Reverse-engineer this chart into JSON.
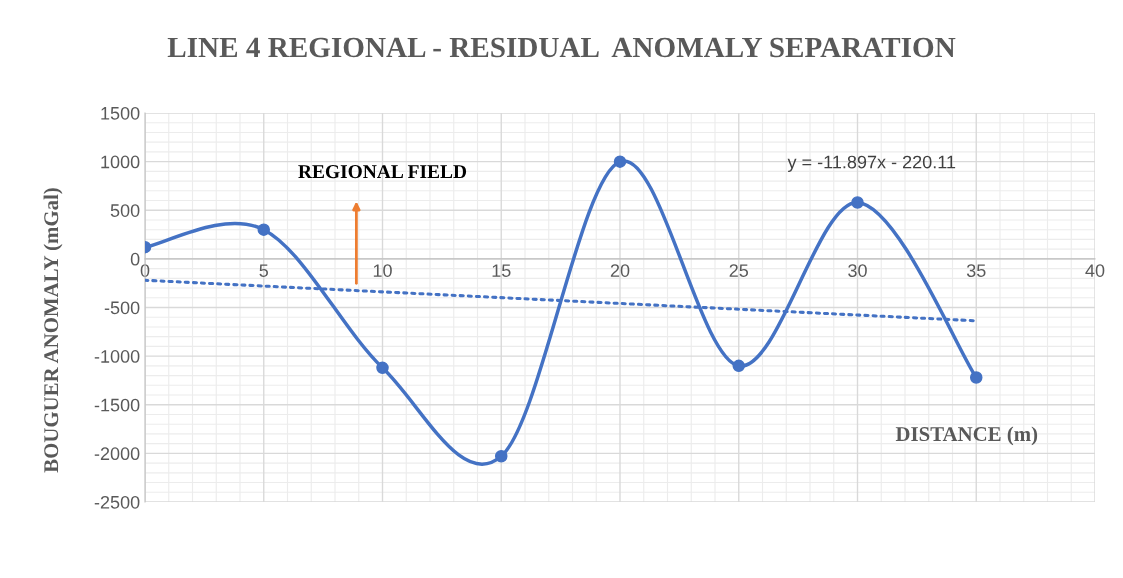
{
  "chart_data": {
    "type": "line",
    "title": "LINE 4 REGIONAL - RESIDUAL  ANOMALY SEPARATION",
    "xlabel": "DISTANCE (m)",
    "ylabel": "BOUGUER ANOMALY (mGal)",
    "xlim": [
      0,
      40
    ],
    "xticks": [
      0,
      5,
      10,
      15,
      20,
      25,
      30,
      35,
      40
    ],
    "ylim": [
      -2500,
      1500
    ],
    "yticks": [
      -2500,
      -2000,
      -1500,
      -1000,
      -500,
      0,
      500,
      1000,
      1500
    ],
    "grid": true,
    "marker": "circle",
    "legend": false,
    "series": [
      {
        "color": "#4472c4",
        "x": [
          0,
          5,
          10,
          15,
          20,
          25,
          30,
          35
        ],
        "values": [
          120,
          300,
          -1120,
          -2030,
          1000,
          -1100,
          580,
          -1220
        ]
      },
      {
        "type": "line",
        "color": "#4472c4",
        "line_style": "dotted",
        "marker": "none",
        "x": [
          0,
          35
        ],
        "values": [
          -220,
          -637
        ]
      }
    ],
    "annotations": [
      "y = -11.897x - 220.11",
      "REGIONAL FIELD"
    ]
  }
}
